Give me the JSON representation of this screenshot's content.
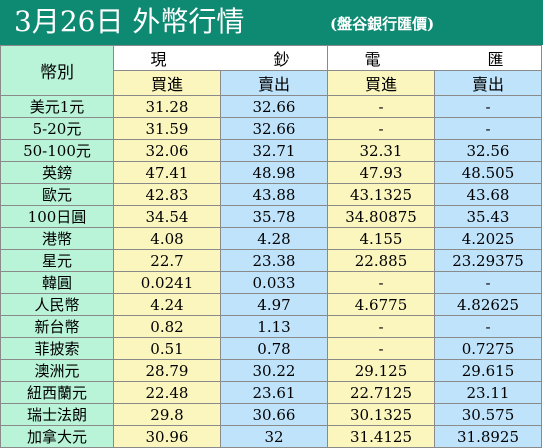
{
  "title": "3月26日 外幣行情",
  "subtitle": "(盤谷銀行匯價)",
  "header": {
    "currency": "幣別",
    "cash": [
      "現",
      "鈔"
    ],
    "transfer": [
      "電",
      "匯"
    ],
    "buy": "買進",
    "sell": "賣出"
  },
  "rows": [
    {
      "currency": "美元1元",
      "cash_buy": "31.28",
      "cash_sell": "32.66",
      "tt_buy": "-",
      "tt_sell": "-"
    },
    {
      "currency": "5-20元",
      "cash_buy": "31.59",
      "cash_sell": "32.66",
      "tt_buy": "-",
      "tt_sell": "-"
    },
    {
      "currency": "50-100元",
      "cash_buy": "32.06",
      "cash_sell": "32.71",
      "tt_buy": "32.31",
      "tt_sell": "32.56"
    },
    {
      "currency": "英鎊",
      "cash_buy": "47.41",
      "cash_sell": "48.98",
      "tt_buy": "47.93",
      "tt_sell": "48.505"
    },
    {
      "currency": "歐元",
      "cash_buy": "42.83",
      "cash_sell": "43.88",
      "tt_buy": "43.1325",
      "tt_sell": "43.68"
    },
    {
      "currency": "100日圓",
      "cash_buy": "34.54",
      "cash_sell": "35.78",
      "tt_buy": "34.80875",
      "tt_sell": "35.43"
    },
    {
      "currency": "港幣",
      "cash_buy": "4.08",
      "cash_sell": "4.28",
      "tt_buy": "4.155",
      "tt_sell": "4.2025"
    },
    {
      "currency": "星元",
      "cash_buy": "22.7",
      "cash_sell": "23.38",
      "tt_buy": "22.885",
      "tt_sell": "23.29375"
    },
    {
      "currency": "韓圓",
      "cash_buy": "0.0241",
      "cash_sell": "0.033",
      "tt_buy": "-",
      "tt_sell": "-"
    },
    {
      "currency": "人民幣",
      "cash_buy": "4.24",
      "cash_sell": "4.97",
      "tt_buy": "4.6775",
      "tt_sell": "4.82625"
    },
    {
      "currency": "新台幣",
      "cash_buy": "0.82",
      "cash_sell": "1.13",
      "tt_buy": "-",
      "tt_sell": "-"
    },
    {
      "currency": "菲披索",
      "cash_buy": "0.51",
      "cash_sell": "0.78",
      "tt_buy": "-",
      "tt_sell": "0.7275"
    },
    {
      "currency": "澳洲元",
      "cash_buy": "28.79",
      "cash_sell": "30.22",
      "tt_buy": "29.125",
      "tt_sell": "29.615"
    },
    {
      "currency": "紐西蘭元",
      "cash_buy": "22.48",
      "cash_sell": "23.61",
      "tt_buy": "22.7125",
      "tt_sell": "23.11"
    },
    {
      "currency": "瑞士法朗",
      "cash_buy": "29.8",
      "cash_sell": "30.66",
      "tt_buy": "30.1325",
      "tt_sell": "30.575"
    },
    {
      "currency": "加拿大元",
      "cash_buy": "30.96",
      "cash_sell": "32",
      "tt_buy": "31.4125",
      "tt_sell": "31.8925"
    }
  ],
  "colors": {
    "title_bg": "#0f8a72",
    "currency_col_bg": "#b9f3d8",
    "buy_col_bg": "#fbf5be",
    "sell_col_bg": "#bfe3fb"
  }
}
